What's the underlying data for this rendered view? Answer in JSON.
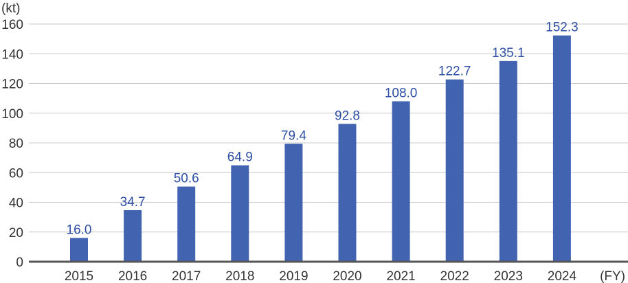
{
  "chart_data": {
    "type": "bar",
    "categories": [
      "2015",
      "2016",
      "2017",
      "2018",
      "2019",
      "2020",
      "2021",
      "2022",
      "2023",
      "2024"
    ],
    "values": [
      16.0,
      34.7,
      50.6,
      64.9,
      79.4,
      92.8,
      108.0,
      122.7,
      135.1,
      152.3
    ],
    "data_labels": [
      "16.0",
      "34.7",
      "50.6",
      "64.9",
      "79.4",
      "92.8",
      "108.0",
      "122.7",
      "135.1",
      "152.3"
    ],
    "y_unit": "(kt)",
    "x_unit": "(FY)",
    "ylim": [
      0,
      160
    ],
    "yticks": [
      "0",
      "20",
      "40",
      "60",
      "80",
      "100",
      "120",
      "140",
      "160"
    ],
    "grid": true,
    "legend": "none",
    "bar_color": "#4264b0",
    "label_color": "#2e4fa3"
  }
}
